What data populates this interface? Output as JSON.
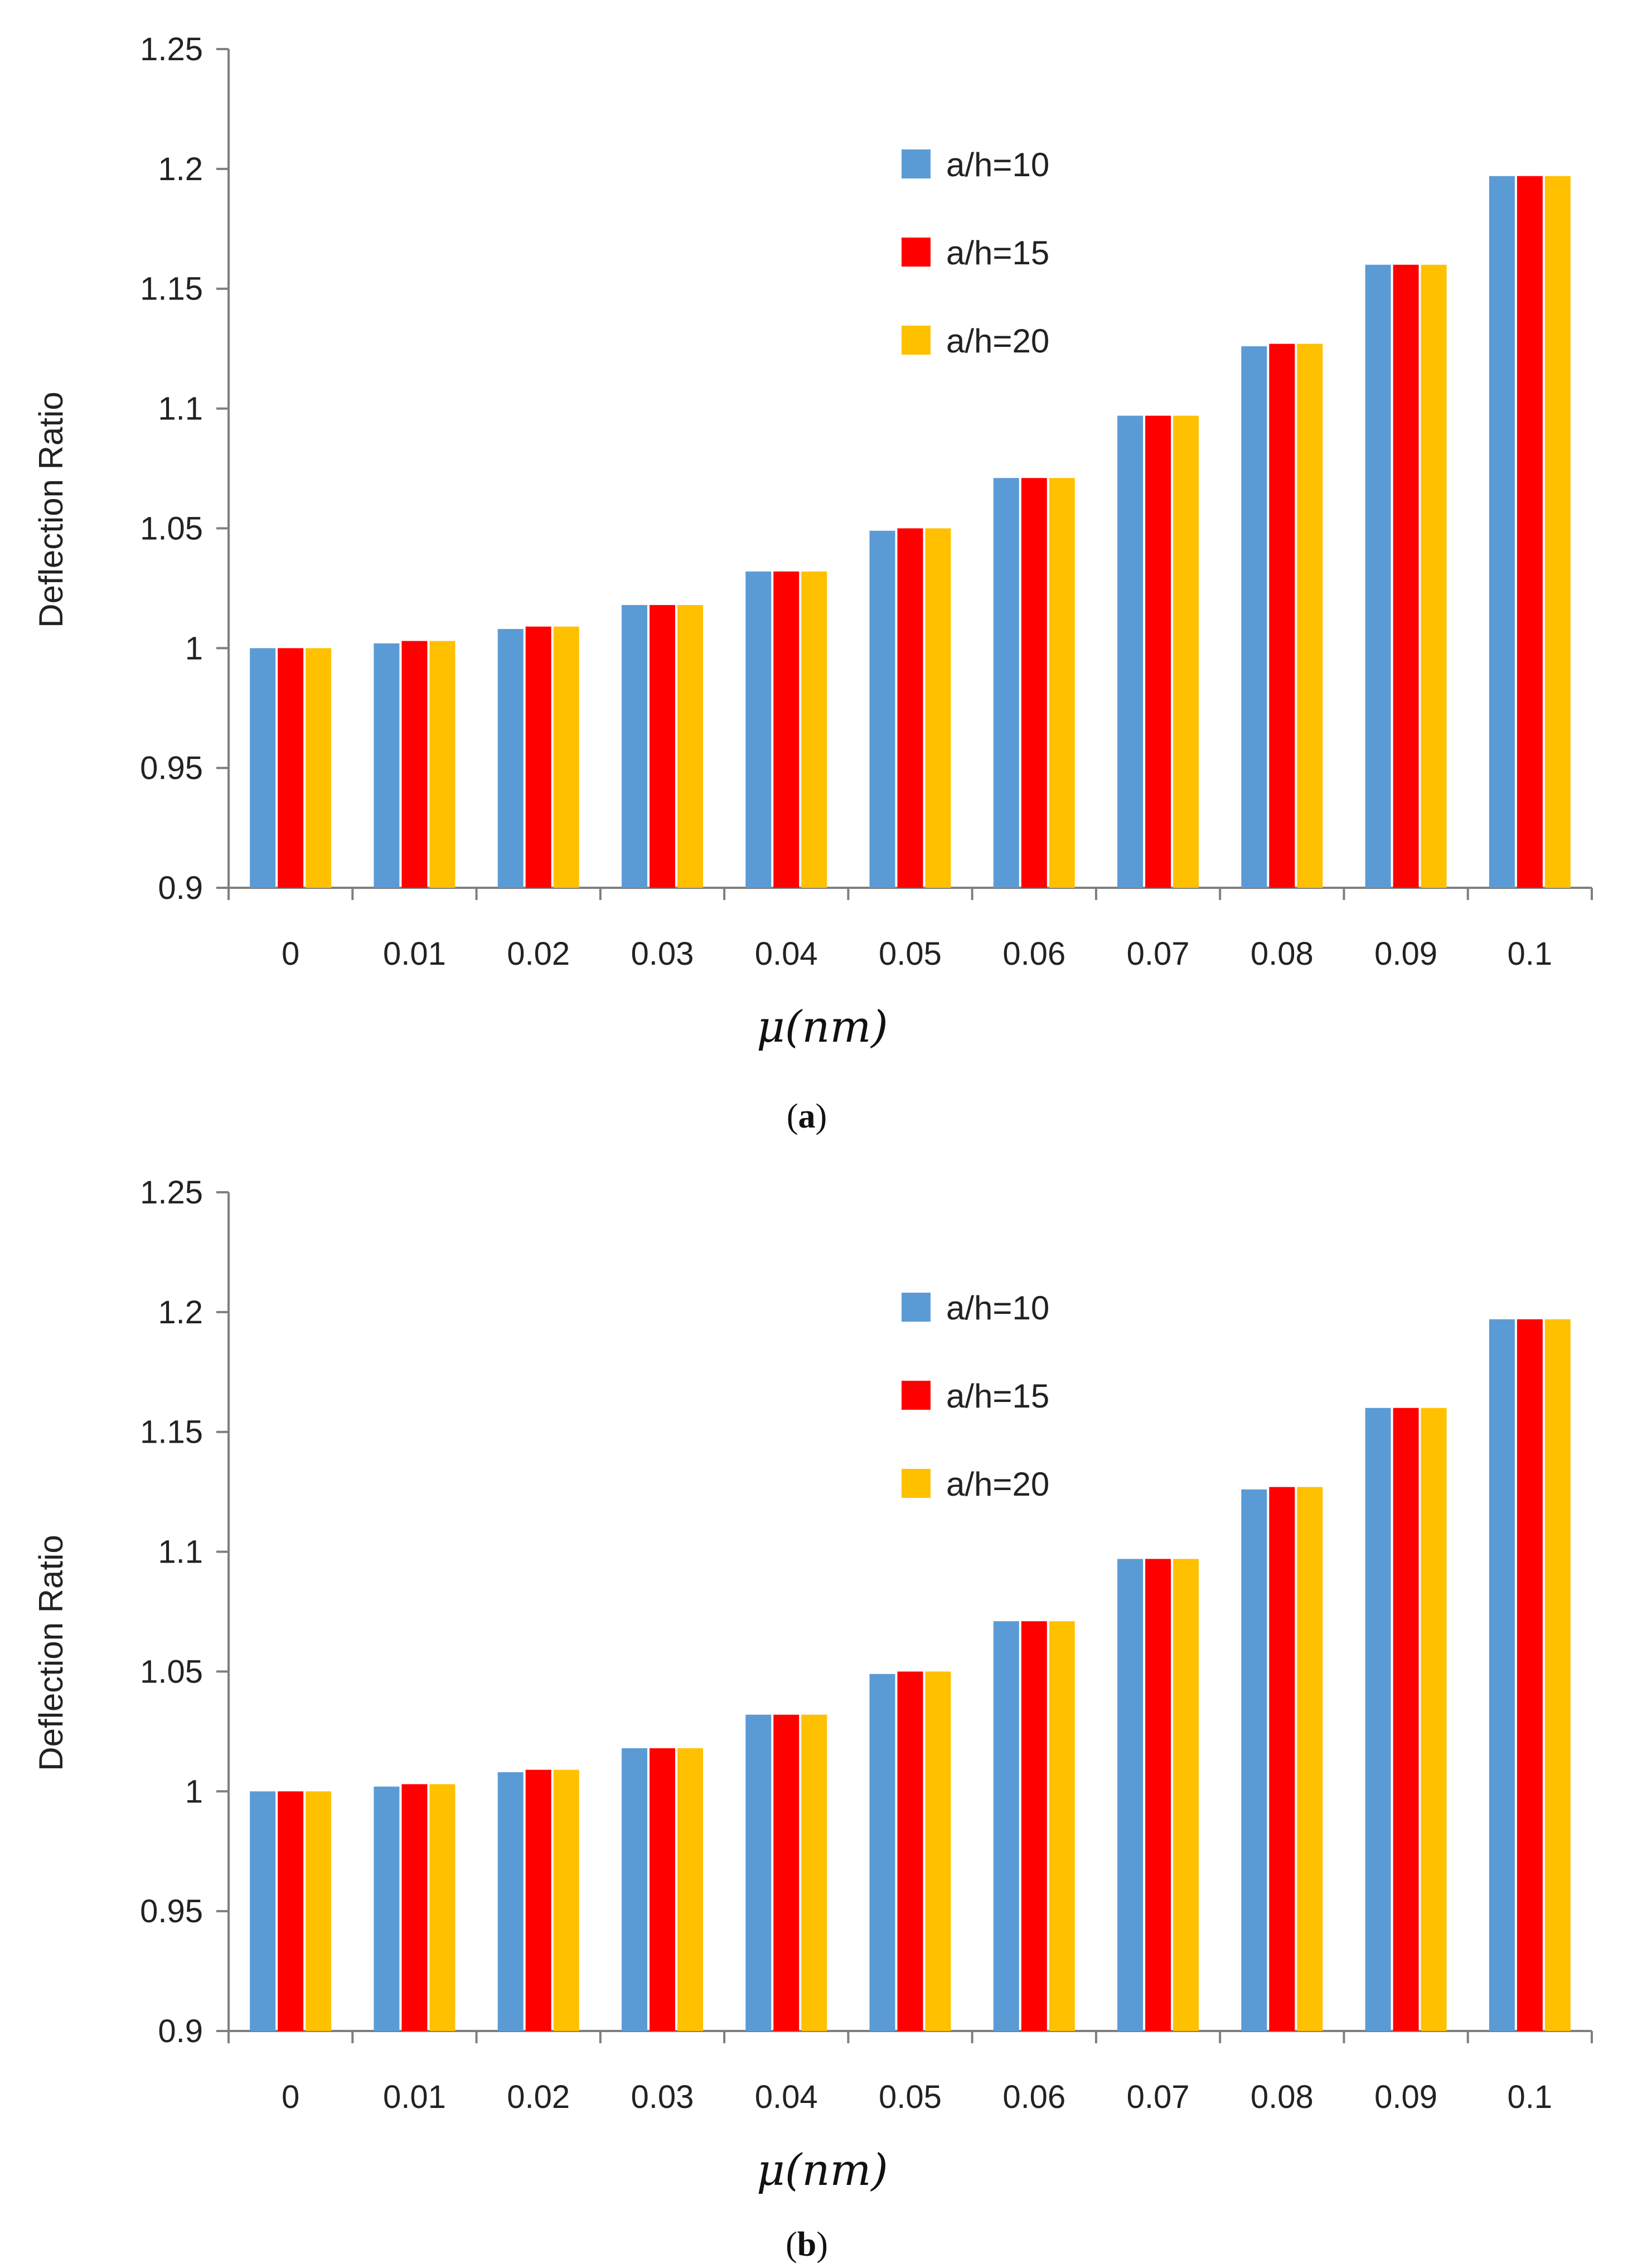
{
  "colors": {
    "a/h=10": "#5b9bd5",
    "a/h=15": "#ff0000",
    "a/h=20": "#ffc000"
  },
  "chart_data": [
    {
      "type": "bar",
      "panel": "a",
      "caption_label": "a",
      "categories": [
        "0",
        "0.01",
        "0.02",
        "0.03",
        "0.04",
        "0.05",
        "0.06",
        "0.07",
        "0.08",
        "0.09",
        "0.1"
      ],
      "series": [
        {
          "name": "a/h=10",
          "values": [
            1.0,
            1.002,
            1.008,
            1.018,
            1.032,
            1.049,
            1.071,
            1.097,
            1.126,
            1.16,
            1.197
          ]
        },
        {
          "name": "a/h=15",
          "values": [
            1.0,
            1.003,
            1.009,
            1.018,
            1.032,
            1.05,
            1.071,
            1.097,
            1.127,
            1.16,
            1.197
          ]
        },
        {
          "name": "a/h=20",
          "values": [
            1.0,
            1.003,
            1.009,
            1.018,
            1.032,
            1.05,
            1.071,
            1.097,
            1.127,
            1.16,
            1.197
          ]
        }
      ],
      "ylabel": "Deflection Ratio",
      "xlabel": "μ(nm)",
      "ylim": [
        0.9,
        1.25
      ],
      "yticks": [
        "0.9",
        "0.95",
        "1",
        "1.05",
        "1.1",
        "1.15",
        "1.2",
        "1.25"
      ],
      "legend_position": "top-center"
    },
    {
      "type": "bar",
      "panel": "b",
      "caption_label": "b",
      "categories": [
        "0",
        "0.01",
        "0.02",
        "0.03",
        "0.04",
        "0.05",
        "0.06",
        "0.07",
        "0.08",
        "0.09",
        "0.1"
      ],
      "series": [
        {
          "name": "a/h=10",
          "values": [
            1.0,
            1.002,
            1.008,
            1.018,
            1.032,
            1.049,
            1.071,
            1.097,
            1.126,
            1.16,
            1.197
          ]
        },
        {
          "name": "a/h=15",
          "values": [
            1.0,
            1.003,
            1.009,
            1.018,
            1.032,
            1.05,
            1.071,
            1.097,
            1.127,
            1.16,
            1.197
          ]
        },
        {
          "name": "a/h=20",
          "values": [
            1.0,
            1.003,
            1.009,
            1.018,
            1.032,
            1.05,
            1.071,
            1.097,
            1.127,
            1.16,
            1.197
          ]
        }
      ],
      "ylabel": "Deflection Ratio",
      "xlabel": "μ(nm)",
      "ylim": [
        0.9,
        1.25
      ],
      "yticks": [
        "0.9",
        "0.95",
        "1",
        "1.05",
        "1.1",
        "1.15",
        "1.2",
        "1.25"
      ],
      "legend_position": "top-center"
    }
  ]
}
